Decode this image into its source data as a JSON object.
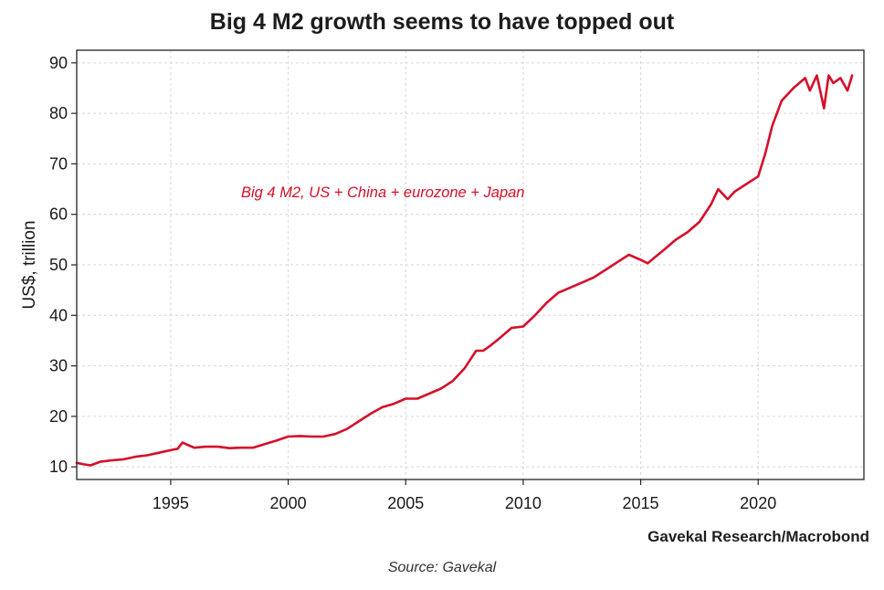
{
  "credit": "Gavekal Research/Macrobond",
  "source": "Source: Gavekal",
  "colors": {
    "series": "#d40f2a",
    "grid": "#d6d6d6",
    "axis": "#222222"
  },
  "chart_data": {
    "type": "line",
    "title": "Big 4 M2 growth seems to have topped out",
    "xlabel": "",
    "ylabel": "US$, trillion",
    "xlim": [
      1991.0,
      2024.5
    ],
    "ylim": [
      7.5,
      92.5
    ],
    "x_ticks": [
      1995,
      2000,
      2005,
      2010,
      2015,
      2020
    ],
    "y_ticks": [
      10,
      20,
      30,
      40,
      50,
      60,
      70,
      80,
      90
    ],
    "grid": true,
    "series": [
      {
        "name": "Big 4 M2, US + China + eurozone + Japan",
        "x": [
          1991.0,
          1991.3,
          1991.6,
          1992.0,
          1992.5,
          1993.0,
          1993.5,
          1994.0,
          1994.5,
          1995.0,
          1995.3,
          1995.5,
          1995.8,
          1996.0,
          1996.5,
          1997.0,
          1997.5,
          1998.0,
          1998.5,
          1999.0,
          1999.5,
          2000.0,
          2000.5,
          2001.0,
          2001.5,
          2002.0,
          2002.5,
          2003.0,
          2003.5,
          2004.0,
          2004.5,
          2005.0,
          2005.5,
          2006.0,
          2006.5,
          2007.0,
          2007.5,
          2008.0,
          2008.3,
          2008.6,
          2009.0,
          2009.5,
          2010.0,
          2010.5,
          2011.0,
          2011.5,
          2012.0,
          2012.5,
          2013.0,
          2013.5,
          2014.0,
          2014.5,
          2015.0,
          2015.3,
          2015.6,
          2016.0,
          2016.5,
          2017.0,
          2017.5,
          2018.0,
          2018.3,
          2018.7,
          2019.0,
          2019.5,
          2020.0,
          2020.3,
          2020.6,
          2021.0,
          2021.5,
          2022.0,
          2022.2,
          2022.5,
          2022.8,
          2023.0,
          2023.2,
          2023.5,
          2023.8,
          2024.0
        ],
        "y": [
          10.8,
          10.5,
          10.3,
          11.0,
          11.3,
          11.5,
          12.0,
          12.3,
          12.8,
          13.3,
          13.6,
          14.8,
          14.2,
          13.8,
          14.0,
          14.0,
          13.7,
          13.8,
          13.8,
          14.5,
          15.2,
          16.0,
          16.1,
          16.0,
          16.0,
          16.5,
          17.5,
          19.0,
          20.5,
          21.8,
          22.5,
          23.5,
          23.5,
          24.5,
          25.5,
          27.0,
          29.5,
          33.0,
          33.0,
          34.0,
          35.5,
          37.5,
          37.8,
          40.0,
          42.5,
          44.5,
          45.5,
          46.5,
          47.5,
          49.0,
          50.5,
          52.0,
          51.0,
          50.3,
          51.5,
          53.0,
          55.0,
          56.5,
          58.5,
          62.0,
          65.0,
          63.0,
          64.5,
          66.0,
          67.5,
          72.0,
          77.5,
          82.5,
          85.0,
          87.0,
          84.5,
          87.5,
          81.0,
          87.5,
          86.0,
          87.0,
          84.5,
          87.5
        ]
      }
    ]
  }
}
